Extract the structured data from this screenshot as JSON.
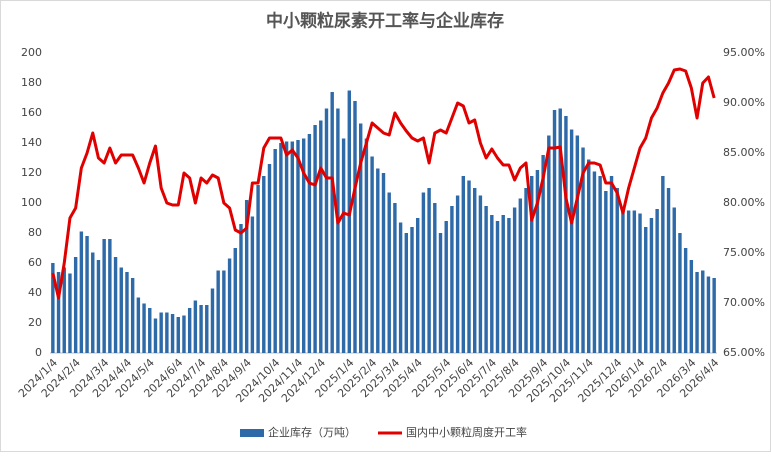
{
  "chart_data": {
    "type": "bar",
    "title": "中小颗粒尿素开工率与企业库存",
    "categories": [
      "2024/1/4",
      null,
      null,
      null,
      "2024/2/4",
      null,
      null,
      null,
      null,
      "2024/3/4",
      null,
      null,
      null,
      "2024/4/4",
      null,
      null,
      null,
      "2024/5/4",
      null,
      null,
      null,
      null,
      "2024/6/4",
      null,
      null,
      null,
      "2024/7/4",
      null,
      null,
      null,
      "2024/8/4",
      null,
      null,
      null,
      "2024/9/4",
      null,
      null,
      null,
      null,
      "2024/10/4",
      null,
      null,
      null,
      "2024/11/4",
      null,
      null,
      null,
      "2024/12/4",
      null,
      null,
      null,
      null,
      "2025/1/4",
      null,
      null,
      null,
      "2025/2/4",
      null,
      null,
      null,
      "2025/3/4",
      null,
      null,
      null,
      "2025/4/4",
      null,
      null,
      null,
      null,
      "2025/5/4",
      null,
      null,
      null,
      "2025/6/4",
      null,
      null,
      null,
      "2025/7/4",
      null,
      null,
      null,
      "2025/8/4",
      null,
      null,
      null,
      null,
      "2025/9/4",
      null,
      null,
      null,
      "2025/10/4",
      null,
      null,
      null,
      "2025/11/4",
      null,
      null,
      null,
      null,
      "2025/12/4",
      null,
      null,
      null,
      "2026/1/4",
      null,
      null,
      null,
      "2026/2/4",
      null,
      null,
      null,
      null,
      "2026/3/4",
      null,
      null,
      null,
      "2026/4/4"
    ],
    "series": [
      {
        "name": "企业库存（万吨）",
        "type": "bar",
        "color": "#2f6aa8",
        "values": [
          60,
          54,
          57,
          53,
          64,
          81,
          78,
          67,
          62,
          76,
          76,
          64,
          57,
          54,
          50,
          37,
          33,
          30,
          23,
          27,
          27,
          26,
          24,
          25,
          30,
          35,
          32,
          32,
          43,
          55,
          55,
          63,
          70,
          86,
          102,
          91,
          112,
          118,
          126,
          136,
          140,
          141,
          141,
          142,
          143,
          146,
          152,
          155,
          163,
          174,
          163,
          143,
          175,
          168,
          153,
          143,
          131,
          123,
          120,
          107,
          100,
          87,
          80,
          84,
          90,
          107,
          110,
          100,
          80,
          88,
          98,
          105,
          118,
          115,
          110,
          105,
          98,
          92,
          88,
          92,
          90,
          97,
          103,
          110,
          118,
          122,
          132,
          145,
          162,
          163,
          158,
          149,
          145,
          137,
          129,
          121,
          118,
          108,
          118,
          110,
          97,
          95,
          95,
          93,
          84,
          90,
          96,
          118,
          110,
          97,
          80,
          70,
          62,
          54,
          55,
          51,
          50
        ]
      },
      {
        "name": "国内中小颗粒周度开工率",
        "type": "line",
        "axis": "y2",
        "color": "#e00000",
        "values": [
          73,
          70.5,
          74,
          78.5,
          79.5,
          83.5,
          85,
          87,
          84.5,
          84,
          85.5,
          84,
          84.8,
          84.8,
          84.8,
          83.5,
          82,
          84,
          85.7,
          81.5,
          80,
          79.8,
          79.8,
          83,
          82.5,
          80,
          82.5,
          82,
          82.8,
          82.5,
          80,
          79.5,
          77.3,
          77,
          77.5,
          82,
          82,
          85.5,
          86.5,
          86.5,
          86.5,
          84.8,
          85.3,
          84.5,
          83,
          82,
          81.8,
          83.5,
          82.5,
          82.5,
          78,
          79,
          78.8,
          81.5,
          84,
          86,
          88,
          87.5,
          87,
          86.8,
          89,
          88,
          87.2,
          86.5,
          86.2,
          86.5,
          84,
          87,
          87.3,
          87,
          88.5,
          90,
          89.7,
          88,
          88.3,
          86,
          84.5,
          85.4,
          84.5,
          83.8,
          83.8,
          82.3,
          83.5,
          84,
          78.3,
          80,
          82.5,
          85.5,
          85.5,
          85.6,
          80.5,
          78,
          80.5,
          83,
          84,
          84,
          83.8,
          82,
          82,
          81,
          79,
          81.5,
          83.5,
          85.5,
          86.5,
          88.5,
          89.5,
          91,
          92,
          93.3,
          93.4,
          93.2,
          91.5,
          88.5,
          92,
          92.6,
          90.5
        ]
      }
    ],
    "ylim": [
      0,
      200
    ],
    "yticks": [
      0,
      20,
      40,
      60,
      80,
      100,
      120,
      140,
      160,
      180,
      200
    ],
    "y2lim": [
      65,
      95
    ],
    "y2ticks": [
      {
        "value": 65,
        "label": "65.00%"
      },
      {
        "value": 70,
        "label": "70.00%"
      },
      {
        "value": 75,
        "label": "75.00%"
      },
      {
        "value": 80,
        "label": "80.00%"
      },
      {
        "value": 85,
        "label": "85.00%"
      },
      {
        "value": 90,
        "label": "90.00%"
      },
      {
        "value": 95,
        "label": "95.00%"
      }
    ],
    "grid": false,
    "legend": "bottom"
  }
}
